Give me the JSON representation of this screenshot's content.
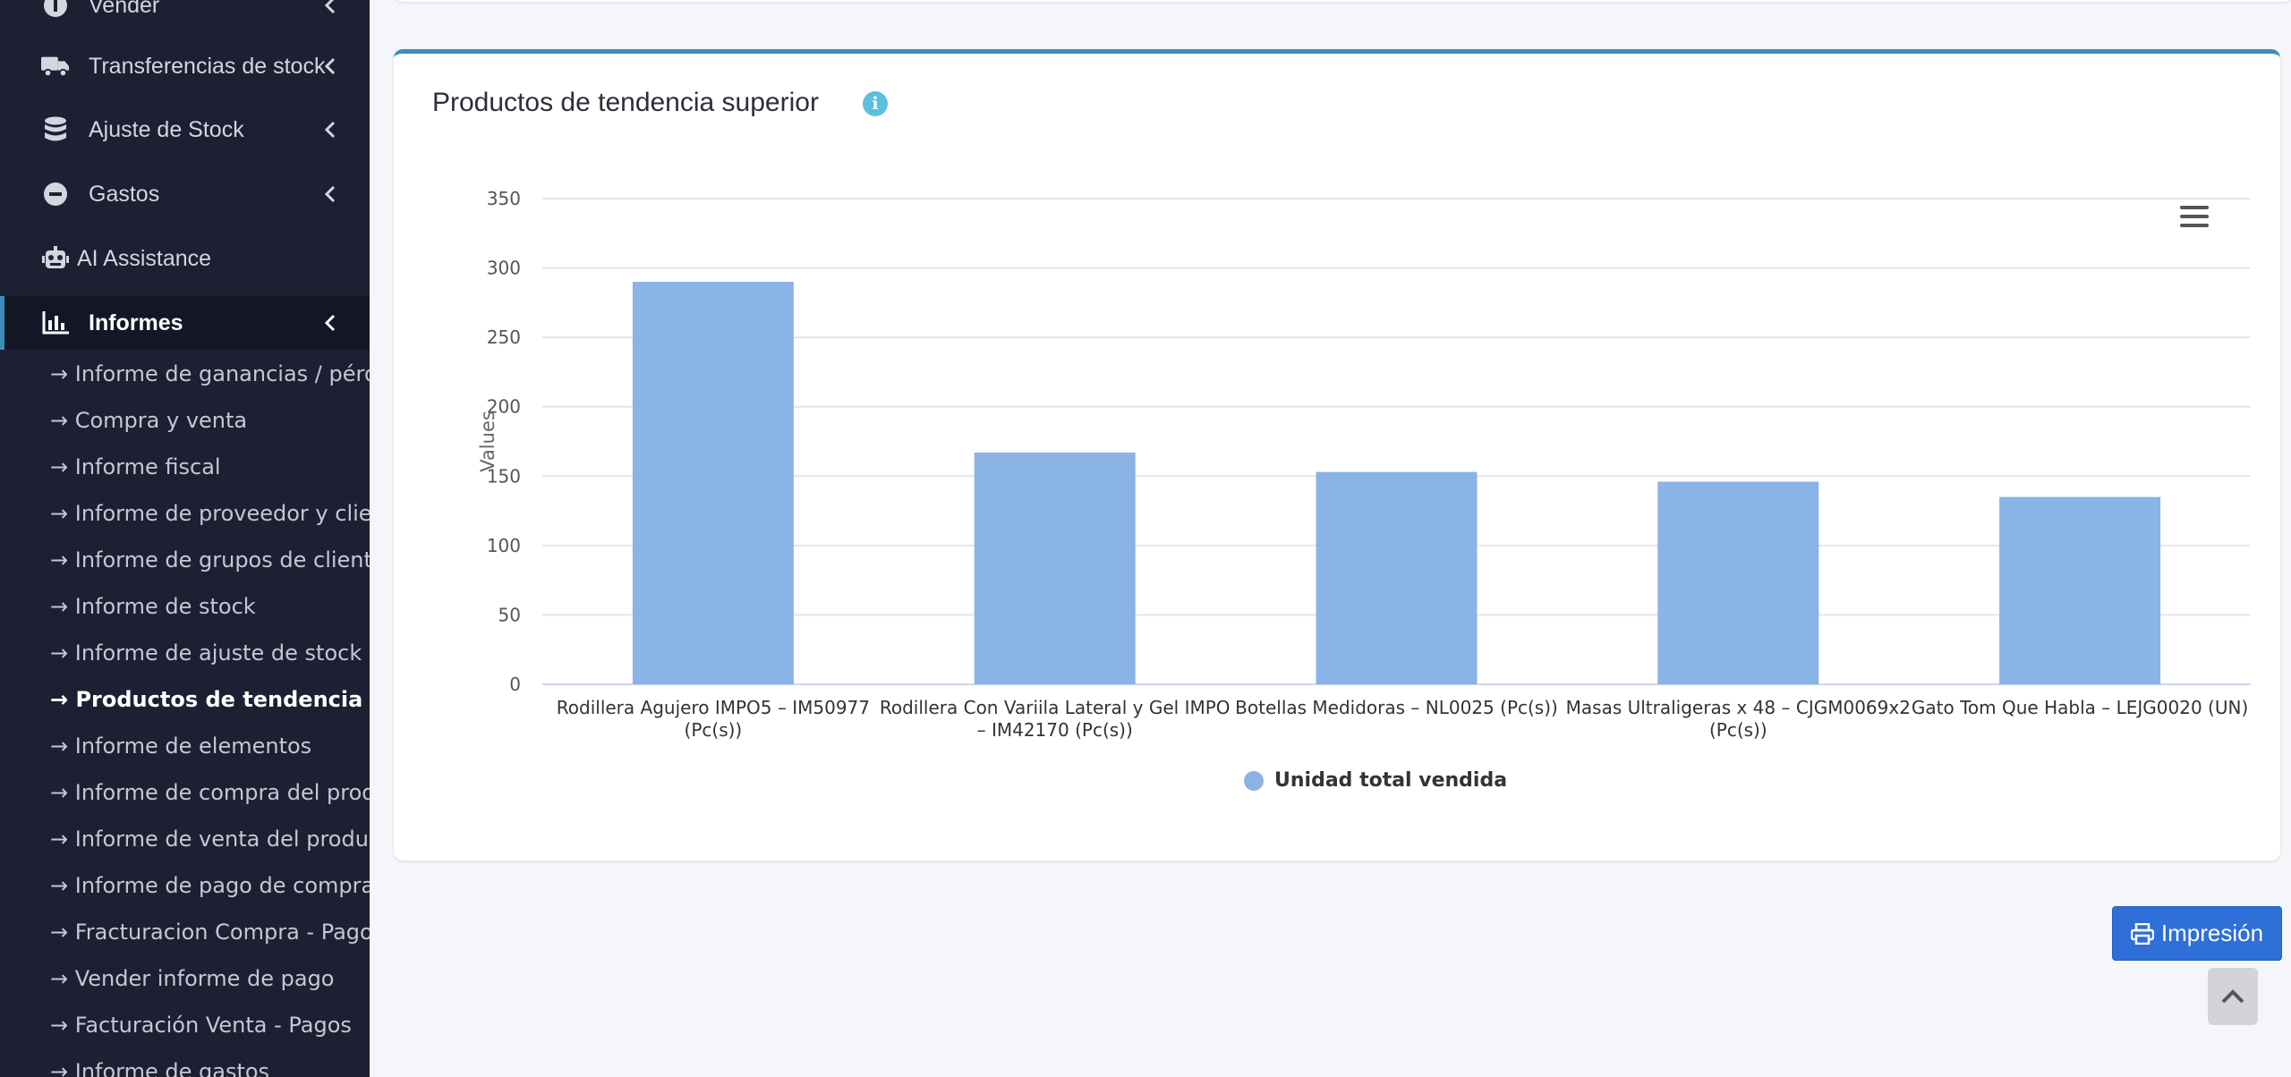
{
  "sidebar": {
    "items": [
      {
        "label": "Vender",
        "icon": "vender-icon"
      },
      {
        "label": "Transferencias de stock",
        "icon": "truck-icon"
      },
      {
        "label": "Ajuste de Stock",
        "icon": "database-icon"
      },
      {
        "label": "Gastos",
        "icon": "minus-circle-icon"
      },
      {
        "label": "AI Assistance",
        "icon": "robot-icon"
      },
      {
        "label": "Informes",
        "icon": "bar-chart-icon"
      }
    ],
    "sub_items": [
      "→ Informe de ganancias / pérdidas",
      "→ Compra y venta",
      "→ Informe fiscal",
      "→ Informe de proveedor y cliente",
      "→ Informe de grupos de clientes",
      "→ Informe de stock",
      "→ Informe de ajuste de stock",
      "→ Productos de tendencia",
      "→ Informe de elementos",
      "→ Informe de compra del producto",
      "→ Informe de venta del producto",
      "→ Informe de pago de compra",
      "→ Fracturacion Compra - Pagos",
      "→ Vender informe de pago",
      "→ Facturación Venta - Pagos",
      "→ Informe de gastos"
    ],
    "active_sub_index": 7,
    "colors": {
      "background": "#1c2032",
      "active_accent": "#3c8dbc"
    }
  },
  "main": {
    "card_title": "Productos de tendencia superior",
    "print_label": "Impresión"
  },
  "chart_data": {
    "type": "bar",
    "title": "",
    "ylabel": "Values",
    "xlabel": "",
    "ylim": [
      0,
      350
    ],
    "yticks": [
      0,
      50,
      100,
      150,
      200,
      250,
      300,
      350
    ],
    "grid": true,
    "legend_position": "bottom-center",
    "categories": [
      [
        "Rodillera Agujero IMPO5 – IM50977",
        "(Pc(s))"
      ],
      [
        "Rodillera Con Variila Lateral y Gel IMPO",
        "– IM42170 (Pc(s))"
      ],
      [
        "Botellas Medidoras – NL0025 (Pc(s))"
      ],
      [
        "Masas Ultraligeras x 48 – CJGM0069x2",
        "(Pc(s))"
      ],
      [
        "Gato Tom Que Habla – LEJG0020 (UN)"
      ]
    ],
    "series": [
      {
        "name": "Unidad total vendida",
        "values": [
          290,
          167,
          153,
          146,
          135
        ],
        "color": "#8ab3e6"
      }
    ]
  }
}
